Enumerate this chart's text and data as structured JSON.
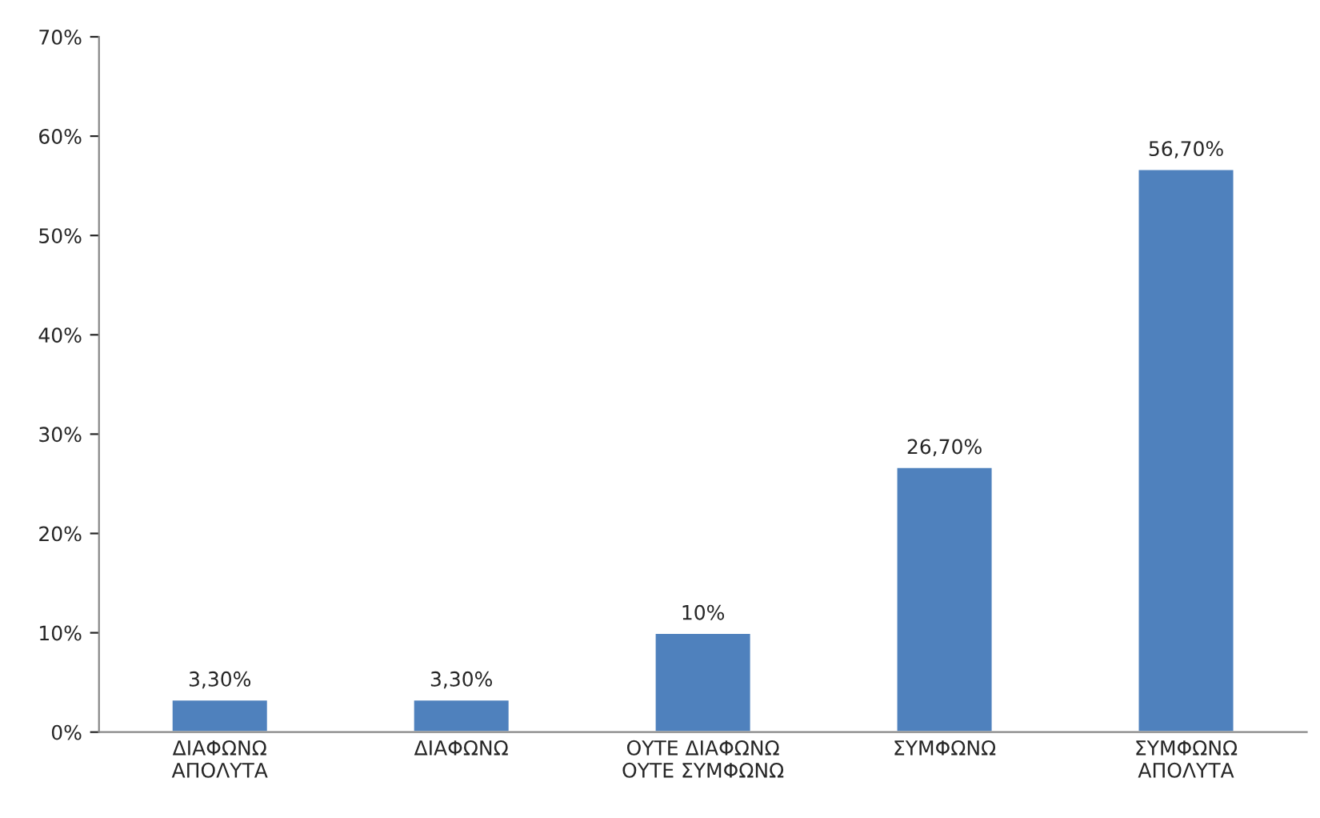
{
  "chart_data": {
    "type": "bar",
    "categories": [
      "ΔΙΑΦΩΝΩ\nΑΠΟΛΥΤΑ",
      "ΔΙΑΦΩΝΩ",
      "ΟΥΤΕ ΔΙΑΦΩΝΩ\nΟΥΤΕ ΣΥΜΦΩΝΩ",
      "ΣΥΜΦΩΝΩ",
      "ΣΥΜΦΩΝΩ\nΑΠΟΛΥΤΑ"
    ],
    "values": [
      3.3,
      3.3,
      10,
      26.7,
      56.7
    ],
    "value_labels": [
      "3,30%",
      "3,30%",
      "10%",
      "26,70%",
      "56,70%"
    ],
    "color": "#4f81bd",
    "ylim": [
      0,
      70
    ],
    "yticks": [
      {
        "value": 0,
        "label": "0%"
      },
      {
        "value": 10,
        "label": "10%"
      },
      {
        "value": 20,
        "label": "20%"
      },
      {
        "value": 30,
        "label": "30%"
      },
      {
        "value": 40,
        "label": "40%"
      },
      {
        "value": 50,
        "label": "50%"
      },
      {
        "value": 60,
        "label": "60%"
      },
      {
        "value": 70,
        "label": "70%"
      }
    ],
    "grid": false,
    "legend": false
  }
}
